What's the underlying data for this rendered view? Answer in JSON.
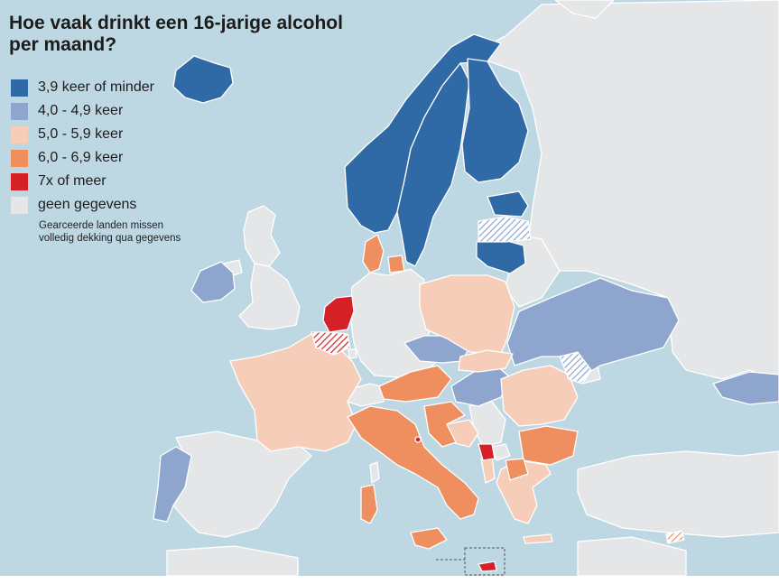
{
  "title_line1": "Hoe vaak drinkt een 16-jarige alcohol",
  "title_line2": "per maand?",
  "legend": [
    {
      "label": "3,9 keer of minder",
      "color": "#2f6aa6"
    },
    {
      "label": "4,0 - 4,9 keer",
      "color": "#8ea6cd"
    },
    {
      "label": "5,0 - 5,9 keer",
      "color": "#f6cdb8"
    },
    {
      "label": "6,0 - 6,9 keer",
      "color": "#ef8f60"
    },
    {
      "label": "7x of meer",
      "color": "#d62027"
    },
    {
      "label": "geen gegevens",
      "color": "#e4e6e8"
    }
  ],
  "note_line1": "Gearceerde landen missen",
  "note_line2": "volledig dekking qua gegevens",
  "colors": {
    "sea": "#bdd7e3",
    "border": "#ffffff"
  }
}
